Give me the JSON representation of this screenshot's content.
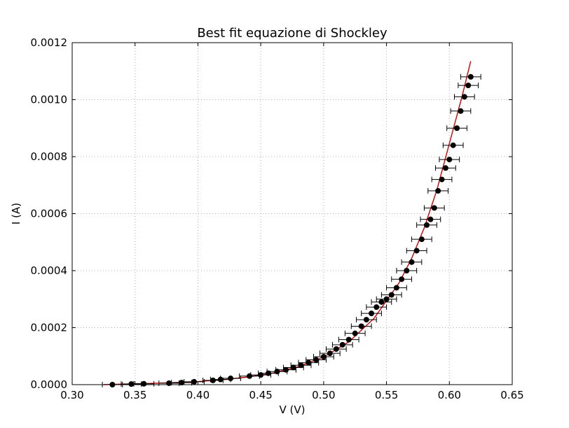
{
  "chart_data": {
    "type": "scatter",
    "title": "Best fit equazione di Shockley",
    "xlabel": "V (V)",
    "ylabel": "I (A)",
    "xlim": [
      0.3,
      0.65
    ],
    "ylim": [
      0.0,
      0.0012
    ],
    "xticks": [
      "0.30",
      "0.35",
      "0.40",
      "0.45",
      "0.50",
      "0.55",
      "0.60",
      "0.65"
    ],
    "yticks": [
      "0.0000",
      "0.0002",
      "0.0004",
      "0.0006",
      "0.0008",
      "0.0010",
      "0.0012"
    ],
    "grid": true,
    "colors": {
      "points": "#000000",
      "fit": "#cc0000",
      "grid": "#b0b0b0"
    },
    "xerr": 0.008,
    "series": [
      {
        "kind": "points-with-xerr",
        "x": [
          0.332,
          0.347,
          0.357,
          0.377,
          0.387,
          0.397,
          0.412,
          0.418,
          0.426,
          0.441,
          0.45,
          0.456,
          0.463,
          0.47,
          0.476,
          0.482,
          0.488,
          0.494,
          0.5,
          0.505,
          0.51,
          0.515,
          0.52,
          0.525,
          0.53,
          0.534,
          0.538,
          0.542,
          0.546,
          0.55,
          0.554,
          0.558,
          0.562,
          0.566,
          0.57,
          0.574,
          0.578,
          0.582,
          0.585,
          0.588,
          0.591,
          0.594,
          0.597,
          0.6,
          0.603,
          0.606,
          0.609,
          0.612,
          0.615,
          0.617
        ],
        "y": [
          0.0,
          2e-06,
          3e-06,
          5e-06,
          7e-06,
          1e-05,
          1.5e-05,
          1.8e-05,
          2.2e-05,
          3e-05,
          3.4e-05,
          4e-05,
          4.6e-05,
          5.2e-05,
          6e-05,
          6.8e-05,
          7.7e-05,
          8.7e-05,
          9.8e-05,
          0.00011,
          0.000125,
          0.00014,
          0.000158,
          0.00018,
          0.000205,
          0.000228,
          0.00025,
          0.000272,
          0.00029,
          0.0003,
          0.000315,
          0.00034,
          0.00037,
          0.0004,
          0.00043,
          0.00047,
          0.00051,
          0.00056,
          0.00058,
          0.00062,
          0.00068,
          0.00072,
          0.00076,
          0.00079,
          0.00084,
          0.0009,
          0.00096,
          0.00101,
          0.00105,
          0.00108
        ]
      },
      {
        "kind": "fit-line",
        "x": [
          0.325,
          0.34,
          0.36,
          0.38,
          0.4,
          0.42,
          0.44,
          0.46,
          0.48,
          0.5,
          0.52,
          0.54,
          0.56,
          0.57,
          0.58,
          0.59,
          0.6,
          0.61,
          0.617
        ],
        "y": [
          0.0,
          2e-06,
          4e-06,
          7e-06,
          1.1e-05,
          1.7e-05,
          2.7e-05,
          4.1e-05,
          6.3e-05,
          9.7e-05,
          0.00015,
          0.000232,
          0.000357,
          0.000443,
          0.00055,
          0.000682,
          0.000846,
          0.00101,
          0.001135
        ]
      }
    ]
  }
}
